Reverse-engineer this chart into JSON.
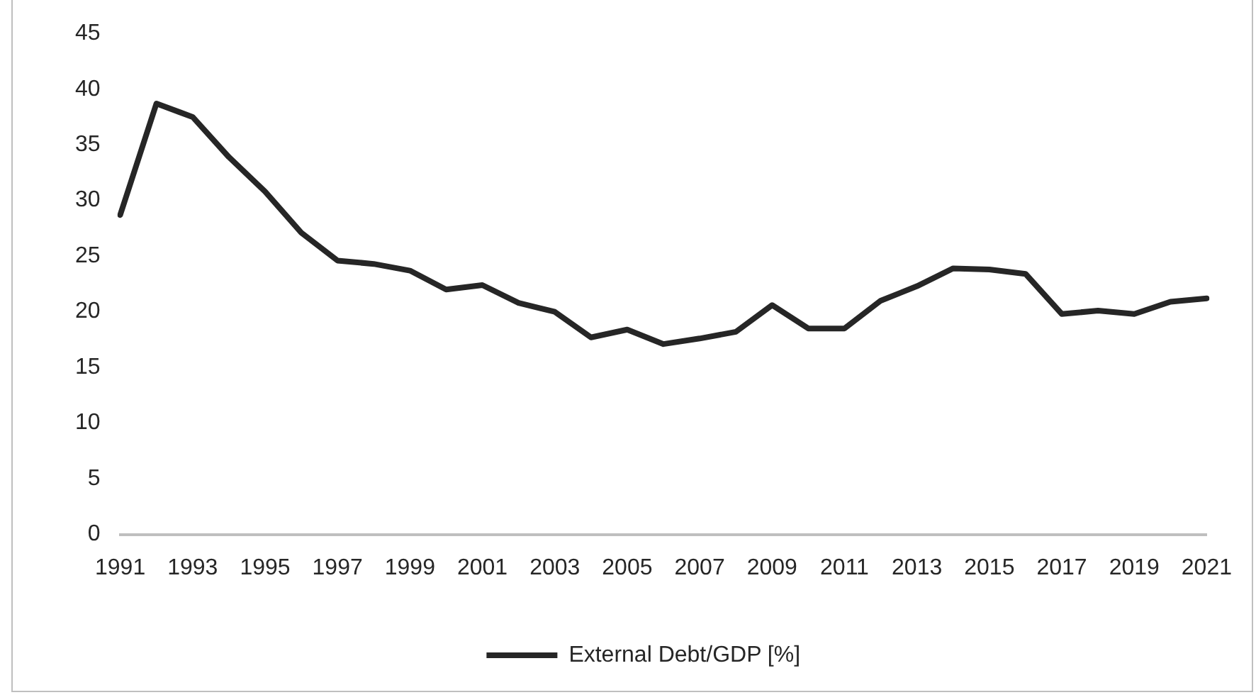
{
  "chart_data": {
    "type": "line",
    "categories": [
      "1991",
      null,
      "1993",
      null,
      "1995",
      null,
      "1997",
      null,
      "1999",
      null,
      "2001",
      null,
      "2003",
      null,
      "2005",
      null,
      "2007",
      null,
      "2009",
      null,
      "2011",
      null,
      "2013",
      null,
      "2015",
      null,
      "2017",
      null,
      "2019",
      null,
      "2021"
    ],
    "series": [
      {
        "name": "External Debt/GDP [%]",
        "color": "#262626",
        "values": [
          28.7,
          38.7,
          37.5,
          33.9,
          30.8,
          27.1,
          24.6,
          24.3,
          23.7,
          22.0,
          22.4,
          20.8,
          20.0,
          17.7,
          18.4,
          17.1,
          17.6,
          18.2,
          20.6,
          18.5,
          18.5,
          21.0,
          22.3,
          23.9,
          23.8,
          23.4,
          19.8,
          20.1,
          19.8,
          20.9,
          21.2
        ]
      }
    ],
    "ylim": [
      0,
      45
    ],
    "yticks": [
      0,
      5,
      10,
      15,
      20,
      25,
      30,
      35,
      40,
      45
    ],
    "grid": false,
    "legend": "bottom",
    "marker": "none",
    "line_style": "solid"
  }
}
